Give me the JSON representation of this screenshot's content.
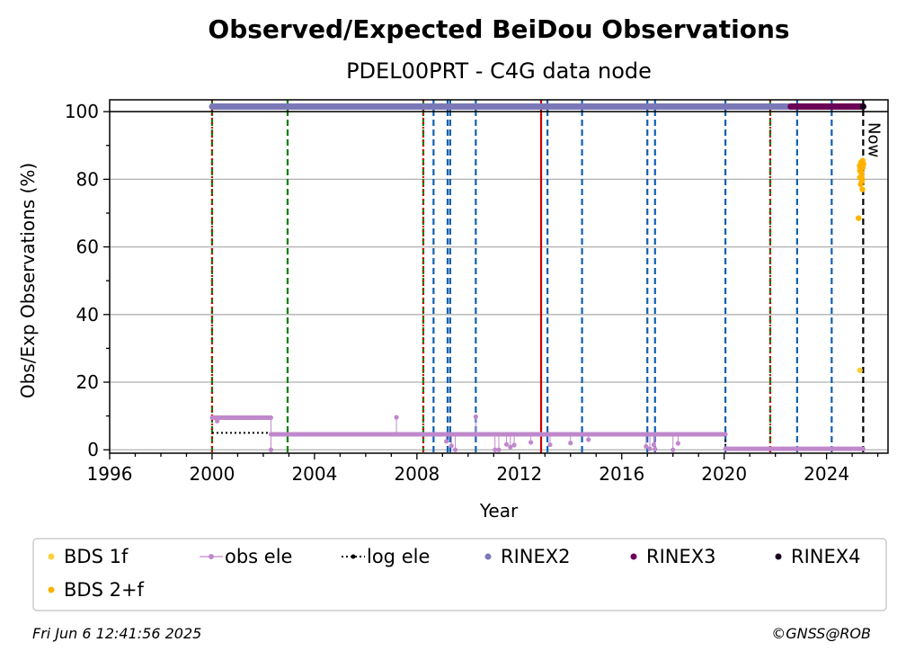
{
  "chart_data": {
    "type": "scatter",
    "title": "Observed/Expected BeiDou Observations",
    "subtitle": "PDEL00PRT - C4G data node",
    "xlabel": "Year",
    "ylabel": "Obs/Exp Observations (%)",
    "xlim": [
      1996,
      2026.4
    ],
    "ylim": [
      -1,
      103.5
    ],
    "xticks": [
      1996,
      2000,
      2004,
      2008,
      2012,
      2016,
      2020,
      2024
    ],
    "yticks": [
      0,
      20,
      40,
      60,
      80,
      100
    ],
    "grid": "horizontal",
    "now_label": "Now",
    "now_x": 2025.43,
    "vlines": [
      {
        "x": 2000.0,
        "color": "#008000",
        "style": "dashed"
      },
      {
        "x": 2000.0,
        "color": "#cc0000",
        "style": "dotted"
      },
      {
        "x": 2002.95,
        "color": "#008000",
        "style": "dashed"
      },
      {
        "x": 2008.25,
        "color": "#008000",
        "style": "dashed"
      },
      {
        "x": 2008.25,
        "color": "#cc0000",
        "style": "dotted"
      },
      {
        "x": 2008.65,
        "color": "#1060b0",
        "style": "dashed"
      },
      {
        "x": 2009.2,
        "color": "#1060b0",
        "style": "dashed"
      },
      {
        "x": 2009.3,
        "color": "#1060b0",
        "style": "dashed"
      },
      {
        "x": 2010.3,
        "color": "#1060b0",
        "style": "dashed"
      },
      {
        "x": 2012.85,
        "color": "#cc0000",
        "style": "solid"
      },
      {
        "x": 2013.1,
        "color": "#1060b0",
        "style": "dashed"
      },
      {
        "x": 2014.45,
        "color": "#1060b0",
        "style": "dashed"
      },
      {
        "x": 2017.0,
        "color": "#1060b0",
        "style": "dashed"
      },
      {
        "x": 2017.3,
        "color": "#1060b0",
        "style": "dashed"
      },
      {
        "x": 2020.05,
        "color": "#1060b0",
        "style": "dashed"
      },
      {
        "x": 2021.8,
        "color": "#008000",
        "style": "dashed"
      },
      {
        "x": 2021.8,
        "color": "#cc0000",
        "style": "dotted"
      },
      {
        "x": 2022.85,
        "color": "#1060b0",
        "style": "dashed"
      },
      {
        "x": 2024.2,
        "color": "#1060b0",
        "style": "dashed"
      }
    ],
    "series": [
      {
        "name": "BDS 1f",
        "color": "#ffd040",
        "kind": "points",
        "points": [
          [
            2025.3,
            23.5
          ]
        ]
      },
      {
        "name": "obs ele",
        "color": "#c088cc",
        "kind": "points_with_line",
        "segments": [
          {
            "x0": 2000.0,
            "x1": 2002.3,
            "y": 9.5
          },
          {
            "x0": 2002.3,
            "x1": 2020.05,
            "y": 4.6
          },
          {
            "x0": 2020.05,
            "x1": 2025.43,
            "y": 0.3
          }
        ],
        "outliers": [
          [
            2000.2,
            8.5
          ],
          [
            2002.3,
            0.0
          ],
          [
            2007.2,
            9.6
          ],
          [
            2009.15,
            2.5
          ],
          [
            2009.35,
            1.2
          ],
          [
            2009.5,
            0.0
          ],
          [
            2010.3,
            9.8
          ],
          [
            2011.05,
            0.0
          ],
          [
            2011.2,
            0.0
          ],
          [
            2011.5,
            1.6
          ],
          [
            2011.65,
            0.8
          ],
          [
            2011.8,
            1.4
          ],
          [
            2012.45,
            2.2
          ],
          [
            2013.2,
            1.5
          ],
          [
            2014.0,
            2.0
          ],
          [
            2014.7,
            3.0
          ],
          [
            2016.95,
            1.0
          ],
          [
            2017.1,
            0.3
          ],
          [
            2017.25,
            1.5
          ],
          [
            2017.3,
            0.2
          ],
          [
            2018.0,
            0.0
          ],
          [
            2018.2,
            1.9
          ]
        ]
      },
      {
        "name": "log ele",
        "color": "#000000",
        "kind": "dotted_step",
        "steps": [
          {
            "x0": 2000.0,
            "x1": 2002.3,
            "y": 5.0
          },
          {
            "x0": 2002.3,
            "x1": 2020.05,
            "y": 4.4
          },
          {
            "x0": 2020.05,
            "x1": 2025.43,
            "y": 0.0
          }
        ]
      },
      {
        "name": "RINEX2",
        "color": "#7b78b8",
        "kind": "band",
        "x0": 2000.0,
        "x1": 2022.6,
        "y": 101.5
      },
      {
        "name": "RINEX3",
        "color": "#6b0057",
        "kind": "band",
        "x0": 2022.6,
        "x1": 2025.43,
        "y": 101.5
      },
      {
        "name": "RINEX4",
        "color": "#1a0020",
        "kind": "band",
        "x0": 2025.42,
        "x1": 2025.43,
        "y": 101.5
      },
      {
        "name": "BDS 2+f",
        "color": "#ffb300",
        "kind": "points",
        "points": [
          [
            2025.25,
            68.5
          ],
          [
            2025.3,
            80.5
          ],
          [
            2025.32,
            83.0
          ],
          [
            2025.34,
            84.0
          ],
          [
            2025.35,
            85.0
          ],
          [
            2025.36,
            82.0
          ],
          [
            2025.38,
            79.5
          ],
          [
            2025.4,
            77.0
          ],
          [
            2025.42,
            83.5
          ],
          [
            2025.44,
            84.5
          ],
          [
            2025.3,
            82.5
          ],
          [
            2025.33,
            78.5
          ],
          [
            2025.37,
            81.0
          ],
          [
            2025.41,
            85.5
          ],
          [
            2025.29,
            84.0
          ],
          [
            2025.39,
            80.0
          ]
        ]
      }
    ],
    "legend_placement": "below",
    "legend_order": [
      "BDS 1f",
      "obs ele",
      "log ele",
      "RINEX2",
      "RINEX3",
      "RINEX4",
      "BDS 2+f"
    ]
  },
  "footer": {
    "timestamp": "Fri Jun  6 12:41:56 2025",
    "credit": "©GNSS@ROB"
  }
}
